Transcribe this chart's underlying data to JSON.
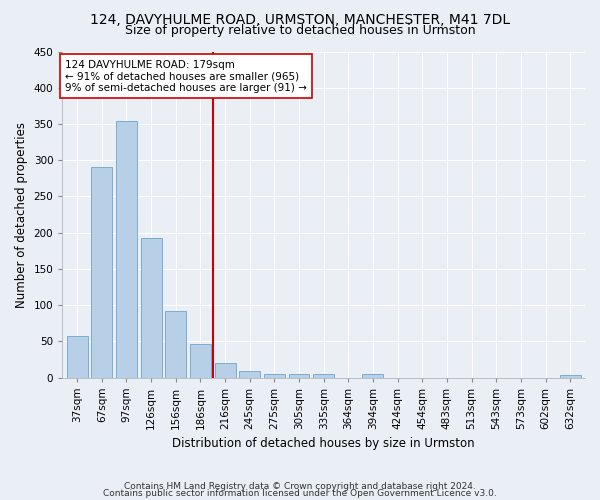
{
  "title1": "124, DAVYHULME ROAD, URMSTON, MANCHESTER, M41 7DL",
  "title2": "Size of property relative to detached houses in Urmston",
  "xlabel": "Distribution of detached houses by size in Urmston",
  "ylabel": "Number of detached properties",
  "footer1": "Contains HM Land Registry data © Crown copyright and database right 2024.",
  "footer2": "Contains public sector information licensed under the Open Government Licence v3.0.",
  "categories": [
    "37sqm",
    "67sqm",
    "97sqm",
    "126sqm",
    "156sqm",
    "186sqm",
    "216sqm",
    "245sqm",
    "275sqm",
    "305sqm",
    "335sqm",
    "364sqm",
    "394sqm",
    "424sqm",
    "454sqm",
    "483sqm",
    "513sqm",
    "543sqm",
    "573sqm",
    "602sqm",
    "632sqm"
  ],
  "values": [
    57,
    290,
    354,
    192,
    92,
    46,
    20,
    9,
    5,
    5,
    5,
    0,
    5,
    0,
    0,
    0,
    0,
    0,
    0,
    0,
    4
  ],
  "bar_color": "#b8cfe8",
  "bar_edge_color": "#7aadd4",
  "vline_x": 5.5,
  "vline_color": "#cc0000",
  "annotation_line1": "124 DAVYHULME ROAD: 179sqm",
  "annotation_line2": "← 91% of detached houses are smaller (965)",
  "annotation_line3": "9% of semi-detached houses are larger (91) →",
  "annotation_box_color": "#ffffff",
  "annotation_box_edge": "#cc0000",
  "ylim": [
    0,
    450
  ],
  "yticks": [
    0,
    50,
    100,
    150,
    200,
    250,
    300,
    350,
    400,
    450
  ],
  "bg_color": "#eaeef5",
  "plot_bg_color": "#eaeef5",
  "grid_color": "#ffffff",
  "title1_fontsize": 10,
  "title2_fontsize": 9,
  "xlabel_fontsize": 8.5,
  "ylabel_fontsize": 8.5,
  "tick_fontsize": 7.5,
  "annotation_fontsize": 7.5,
  "footer_fontsize": 6.5
}
